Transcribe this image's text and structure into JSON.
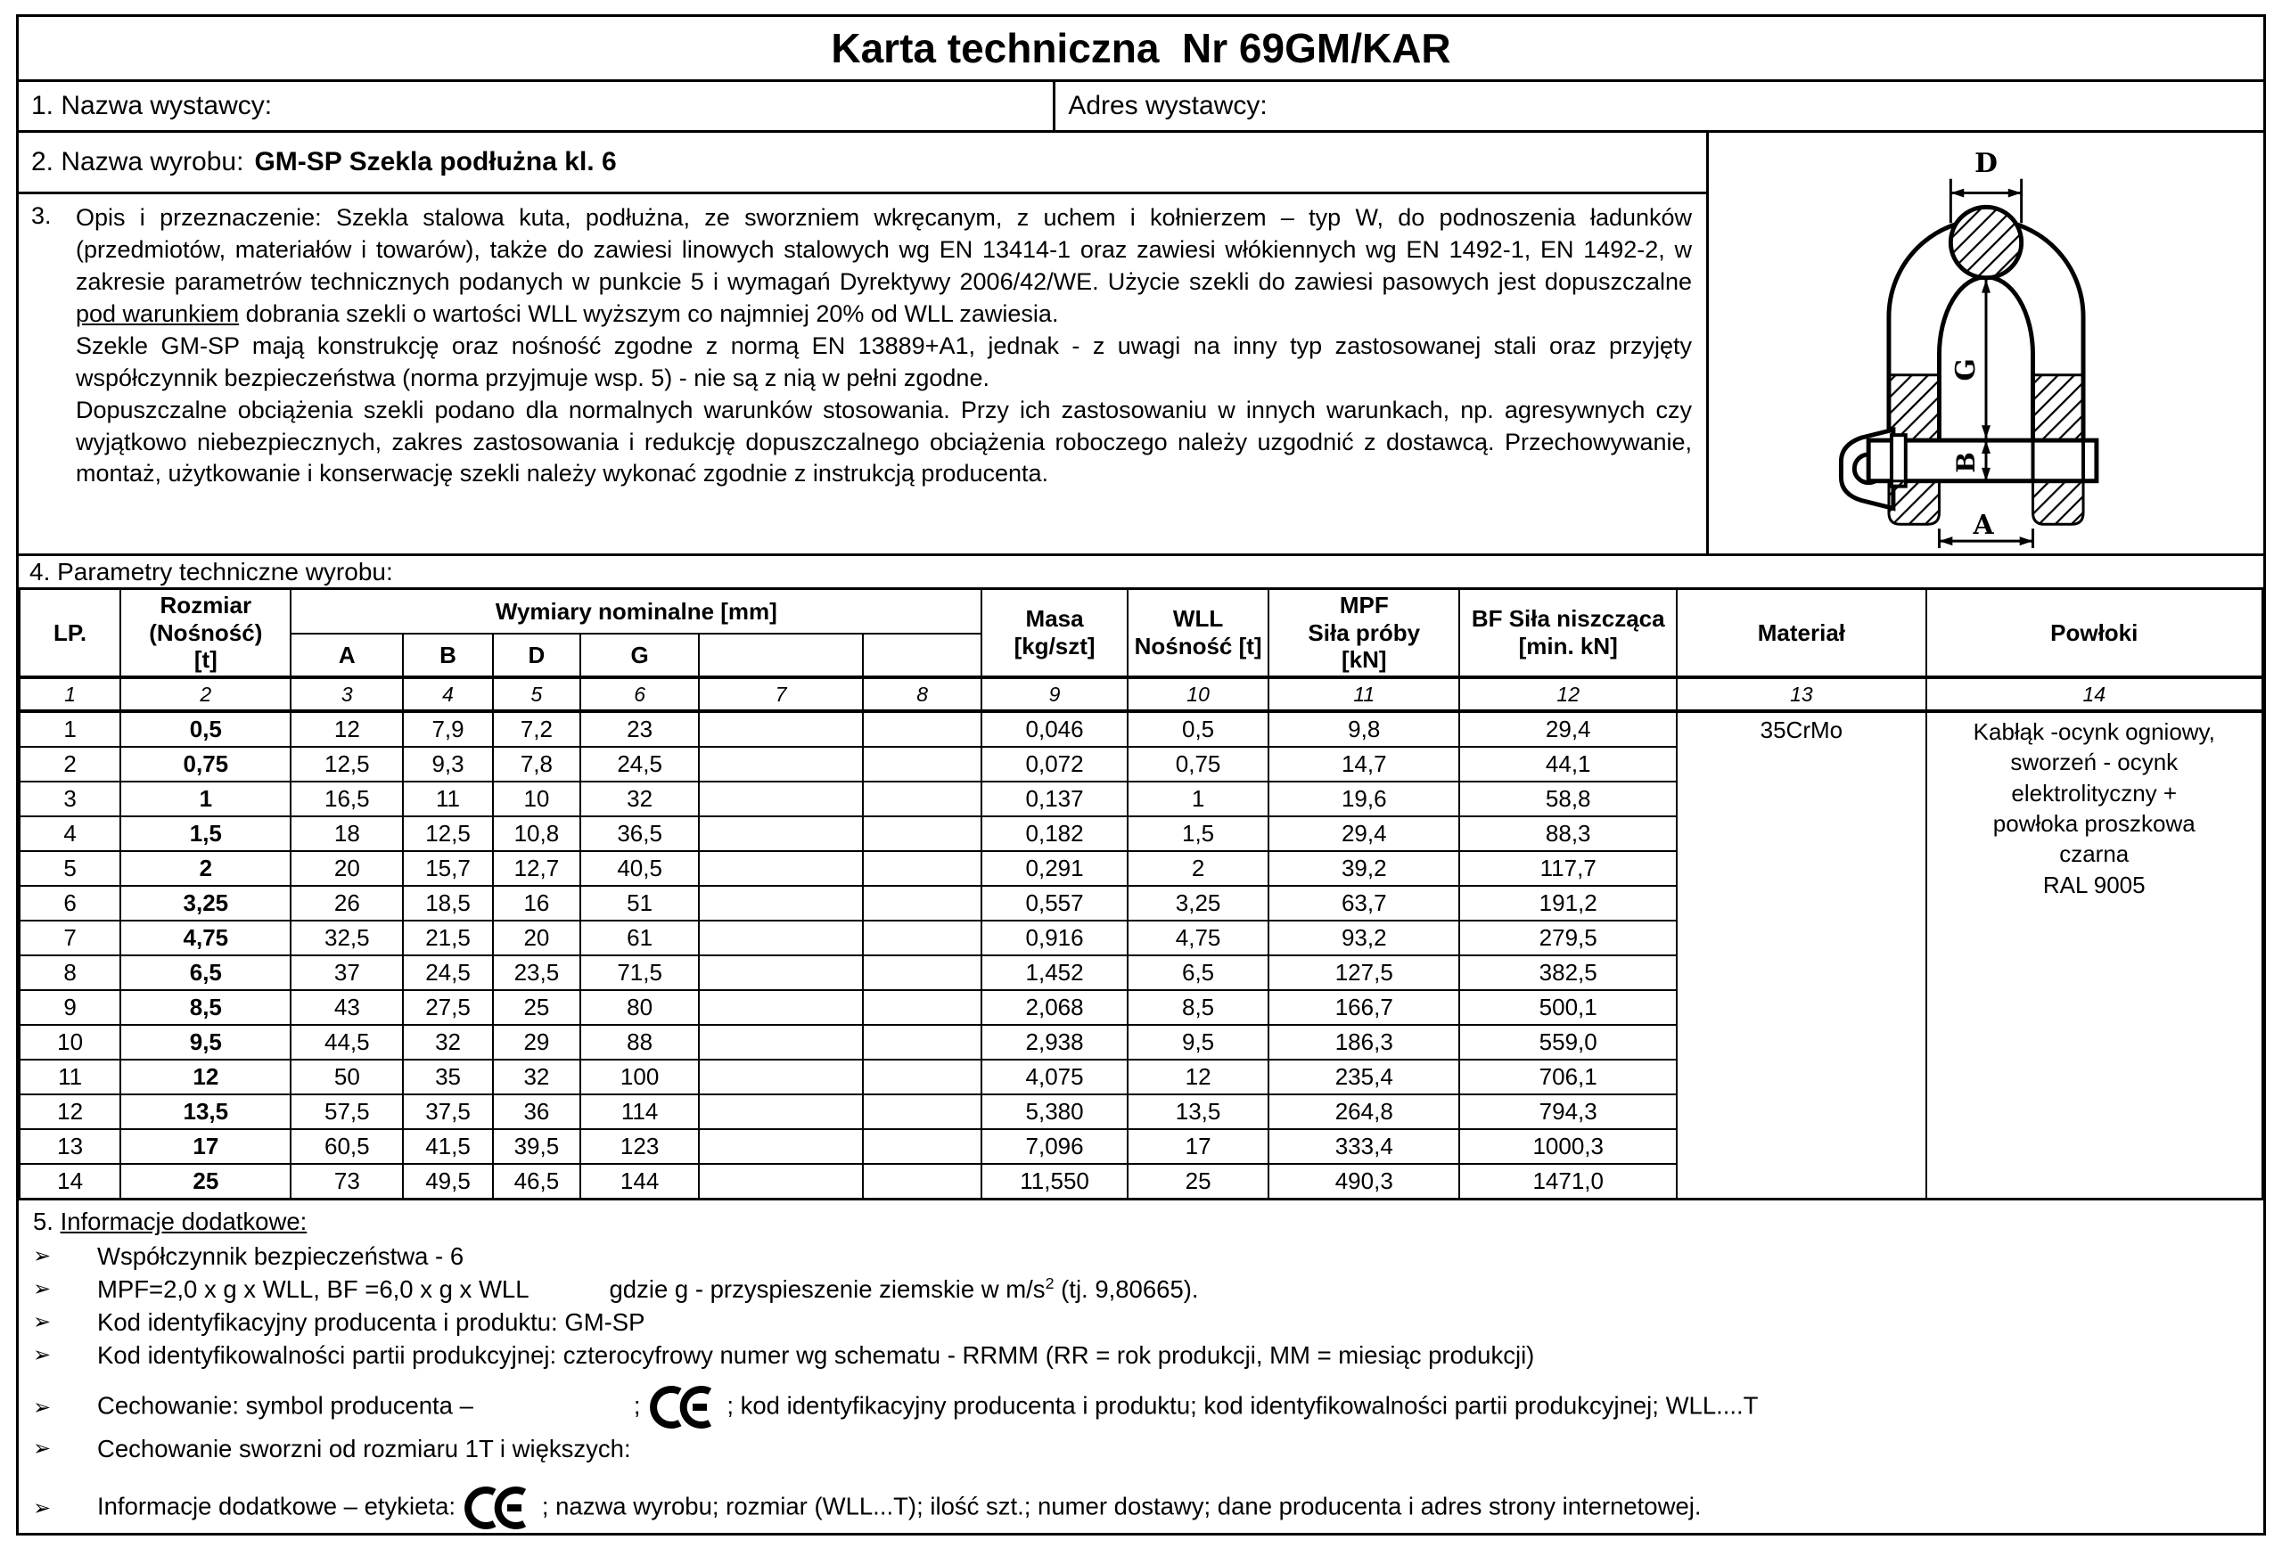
{
  "colors": {
    "ink": "#000000",
    "paper": "#ffffff"
  },
  "title": "Karta techniczna  Nr 69GM/KAR",
  "issuer": {
    "name_label": "1. Nazwa wystawcy:",
    "address_label": "Adres wystawcy:"
  },
  "product": {
    "label": "2. Nazwa wyrobu:",
    "value": "GM-SP Szekla podłużna kl. 6"
  },
  "description": {
    "number": "3.",
    "para1_before": "Opis i przeznaczenie: Szekla  stalowa kuta, podłużna, ze sworzniem wkręcanym, z uchem i kołnierzem – typ W, do podnoszenia ładunków (przedmiotów, materiałów i towarów), także do zawiesi linowych stalowych wg EN 13414-1 oraz zawiesi włókiennych wg EN 1492-1, EN 1492-2, w zakresie parametrów technicznych podanych w punkcie 5 i wymagań Dyrektywy 2006/42/WE. Użycie szekli do zawiesi pasowych jest dopuszczalne ",
    "para1_underlined": "pod warunkiem",
    "para1_after": " dobrania szekli o wartości WLL wyższym co najmniej 20% od WLL zawiesia.",
    "para2": "Szekle GM-SP mają konstrukcję oraz nośność zgodne z normą EN 13889+A1, jednak - z uwagi na inny typ zastosowanej stali oraz przyjęty współczynnik bezpieczeństwa (norma przyjmuje wsp. 5) - nie są z nią w pełni zgodne.",
    "para3": "Dopuszczalne obciążenia szekli podano dla normalnych warunków stosowania. Przy ich zastosowaniu w innych warunkach, np. agresywnych czy wyjątkowo niebezpiecznych, zakres zastosowania i redukcję dopuszczalnego obciążenia roboczego należy uzgodnić z dostawcą. Przechowywanie, montaż, użytkowanie i konserwację szekli należy wykonać zgodnie z instrukcją producenta."
  },
  "diagram": {
    "labels": {
      "d": "D",
      "g": "G",
      "b": "B",
      "a": "A"
    }
  },
  "section4_title": "4. Parametry techniczne wyrobu:",
  "table": {
    "headers": {
      "lp": "LP.",
      "size": "Rozmiar\n(Nośność)\n[t]",
      "dims": "Wymiary nominalne [mm]",
      "sub": [
        "A",
        "B",
        "D",
        "G",
        "",
        ""
      ],
      "mass": "Masa\n[kg/szt]",
      "wll": "WLL\nNośność [t]",
      "mpf": "MPF\nSiła próby\n[kN]",
      "bf": "BF Siła niszcząca\n[min. kN]",
      "material": "Materiał",
      "coating": "Powłoki"
    },
    "indices": [
      "1",
      "2",
      "3",
      "4",
      "5",
      "6",
      "7",
      "8",
      "9",
      "10",
      "11",
      "12",
      "13",
      "14"
    ],
    "rows": [
      {
        "lp": "1",
        "size": "0,5",
        "a": "12",
        "b": "7,9",
        "d": "7,2",
        "g": "23",
        "c7": "",
        "c8": "",
        "mass": "0,046",
        "wll": "0,5",
        "mpf": "9,8",
        "bf": "29,4"
      },
      {
        "lp": "2",
        "size": "0,75",
        "a": "12,5",
        "b": "9,3",
        "d": "7,8",
        "g": "24,5",
        "c7": "",
        "c8": "",
        "mass": "0,072",
        "wll": "0,75",
        "mpf": "14,7",
        "bf": "44,1"
      },
      {
        "lp": "3",
        "size": "1",
        "a": "16,5",
        "b": "11",
        "d": "10",
        "g": "32",
        "c7": "",
        "c8": "",
        "mass": "0,137",
        "wll": "1",
        "mpf": "19,6",
        "bf": "58,8"
      },
      {
        "lp": "4",
        "size": "1,5",
        "a": "18",
        "b": "12,5",
        "d": "10,8",
        "g": "36,5",
        "c7": "",
        "c8": "",
        "mass": "0,182",
        "wll": "1,5",
        "mpf": "29,4",
        "bf": "88,3"
      },
      {
        "lp": "5",
        "size": "2",
        "a": "20",
        "b": "15,7",
        "d": "12,7",
        "g": "40,5",
        "c7": "",
        "c8": "",
        "mass": "0,291",
        "wll": "2",
        "mpf": "39,2",
        "bf": "117,7"
      },
      {
        "lp": "6",
        "size": "3,25",
        "a": "26",
        "b": "18,5",
        "d": "16",
        "g": "51",
        "c7": "",
        "c8": "",
        "mass": "0,557",
        "wll": "3,25",
        "mpf": "63,7",
        "bf": "191,2"
      },
      {
        "lp": "7",
        "size": "4,75",
        "a": "32,5",
        "b": "21,5",
        "d": "20",
        "g": "61",
        "c7": "",
        "c8": "",
        "mass": "0,916",
        "wll": "4,75",
        "mpf": "93,2",
        "bf": "279,5"
      },
      {
        "lp": "8",
        "size": "6,5",
        "a": "37",
        "b": "24,5",
        "d": "23,5",
        "g": "71,5",
        "c7": "",
        "c8": "",
        "mass": "1,452",
        "wll": "6,5",
        "mpf": "127,5",
        "bf": "382,5"
      },
      {
        "lp": "9",
        "size": "8,5",
        "a": "43",
        "b": "27,5",
        "d": "25",
        "g": "80",
        "c7": "",
        "c8": "",
        "mass": "2,068",
        "wll": "8,5",
        "mpf": "166,7",
        "bf": "500,1"
      },
      {
        "lp": "10",
        "size": "9,5",
        "a": "44,5",
        "b": "32",
        "d": "29",
        "g": "88",
        "c7": "",
        "c8": "",
        "mass": "2,938",
        "wll": "9,5",
        "mpf": "186,3",
        "bf": "559,0"
      },
      {
        "lp": "11",
        "size": "12",
        "a": "50",
        "b": "35",
        "d": "32",
        "g": "100",
        "c7": "",
        "c8": "",
        "mass": "4,075",
        "wll": "12",
        "mpf": "235,4",
        "bf": "706,1"
      },
      {
        "lp": "12",
        "size": "13,5",
        "a": "57,5",
        "b": "37,5",
        "d": "36",
        "g": "114",
        "c7": "",
        "c8": "",
        "mass": "5,380",
        "wll": "13,5",
        "mpf": "264,8",
        "bf": "794,3"
      },
      {
        "lp": "13",
        "size": "17",
        "a": "60,5",
        "b": "41,5",
        "d": "39,5",
        "g": "123",
        "c7": "",
        "c8": "",
        "mass": "7,096",
        "wll": "17",
        "mpf": "333,4",
        "bf": "1000,3"
      },
      {
        "lp": "14",
        "size": "25",
        "a": "73",
        "b": "49,5",
        "d": "46,5",
        "g": "144",
        "c7": "",
        "c8": "",
        "mass": "11,550",
        "wll": "25",
        "mpf": "490,3",
        "bf": "1471,0"
      }
    ],
    "material": "35CrMo",
    "coating": "Kabłąk -ocynk ogniowy,\nsworzeń - ocynk\nelektrolityczny +\npowłoka proszkowa\nczarna\nRAL 9005"
  },
  "section5": {
    "prefix": "5. ",
    "title": "Informacje dodatkowe:",
    "marker": "➢",
    "bullets": [
      {
        "parts": [
          {
            "t": "text",
            "v": "Współczynnik bezpieczeństwa - 6"
          }
        ]
      },
      {
        "parts": [
          {
            "t": "text",
            "v": "MPF=2,0 x g x WLL,  BF =6,0 x g x WLL"
          },
          {
            "t": "gap",
            "w": 90
          },
          {
            "t": "text",
            "v": "gdzie g - przyspieszenie ziemskie w m/s"
          },
          {
            "t": "sup",
            "v": "2"
          },
          {
            "t": "text",
            "v": " (tj. 9,80665)."
          }
        ]
      },
      {
        "parts": [
          {
            "t": "text",
            "v": "Kod identyfikacyjny producenta i produktu: GM-SP"
          }
        ]
      },
      {
        "parts": [
          {
            "t": "text",
            "v": "Kod identyfikowalności partii produkcyjnej:  czterocyfrowy numer wg schematu - RRMM (RR = rok produkcji, MM = miesiąc produkcji)"
          }
        ]
      },
      {
        "cls": "b5",
        "parts": [
          {
            "t": "text",
            "v": "Cechowanie:  symbol producenta  –"
          },
          {
            "t": "gap",
            "w": 180
          },
          {
            "t": "text",
            "v": ";"
          },
          {
            "t": "ce"
          },
          {
            "t": "text",
            "v": "; kod identyfikacyjny producenta i produktu; kod identyfikowalności partii produkcyjnej; WLL....T"
          }
        ]
      },
      {
        "parts": [
          {
            "t": "text",
            "v": "Cechowanie sworzni od rozmiaru 1T i większych:"
          }
        ]
      },
      {
        "cls": "b7",
        "parts": [
          {
            "t": "text",
            "v": "Informacje dodatkowe – etykieta:"
          },
          {
            "t": "ce"
          },
          {
            "t": "text",
            "v": "; nazwa wyrobu; rozmiar (WLL...T); ilość szt.; numer dostawy; dane producenta i adres strony internetowej."
          }
        ]
      }
    ]
  }
}
